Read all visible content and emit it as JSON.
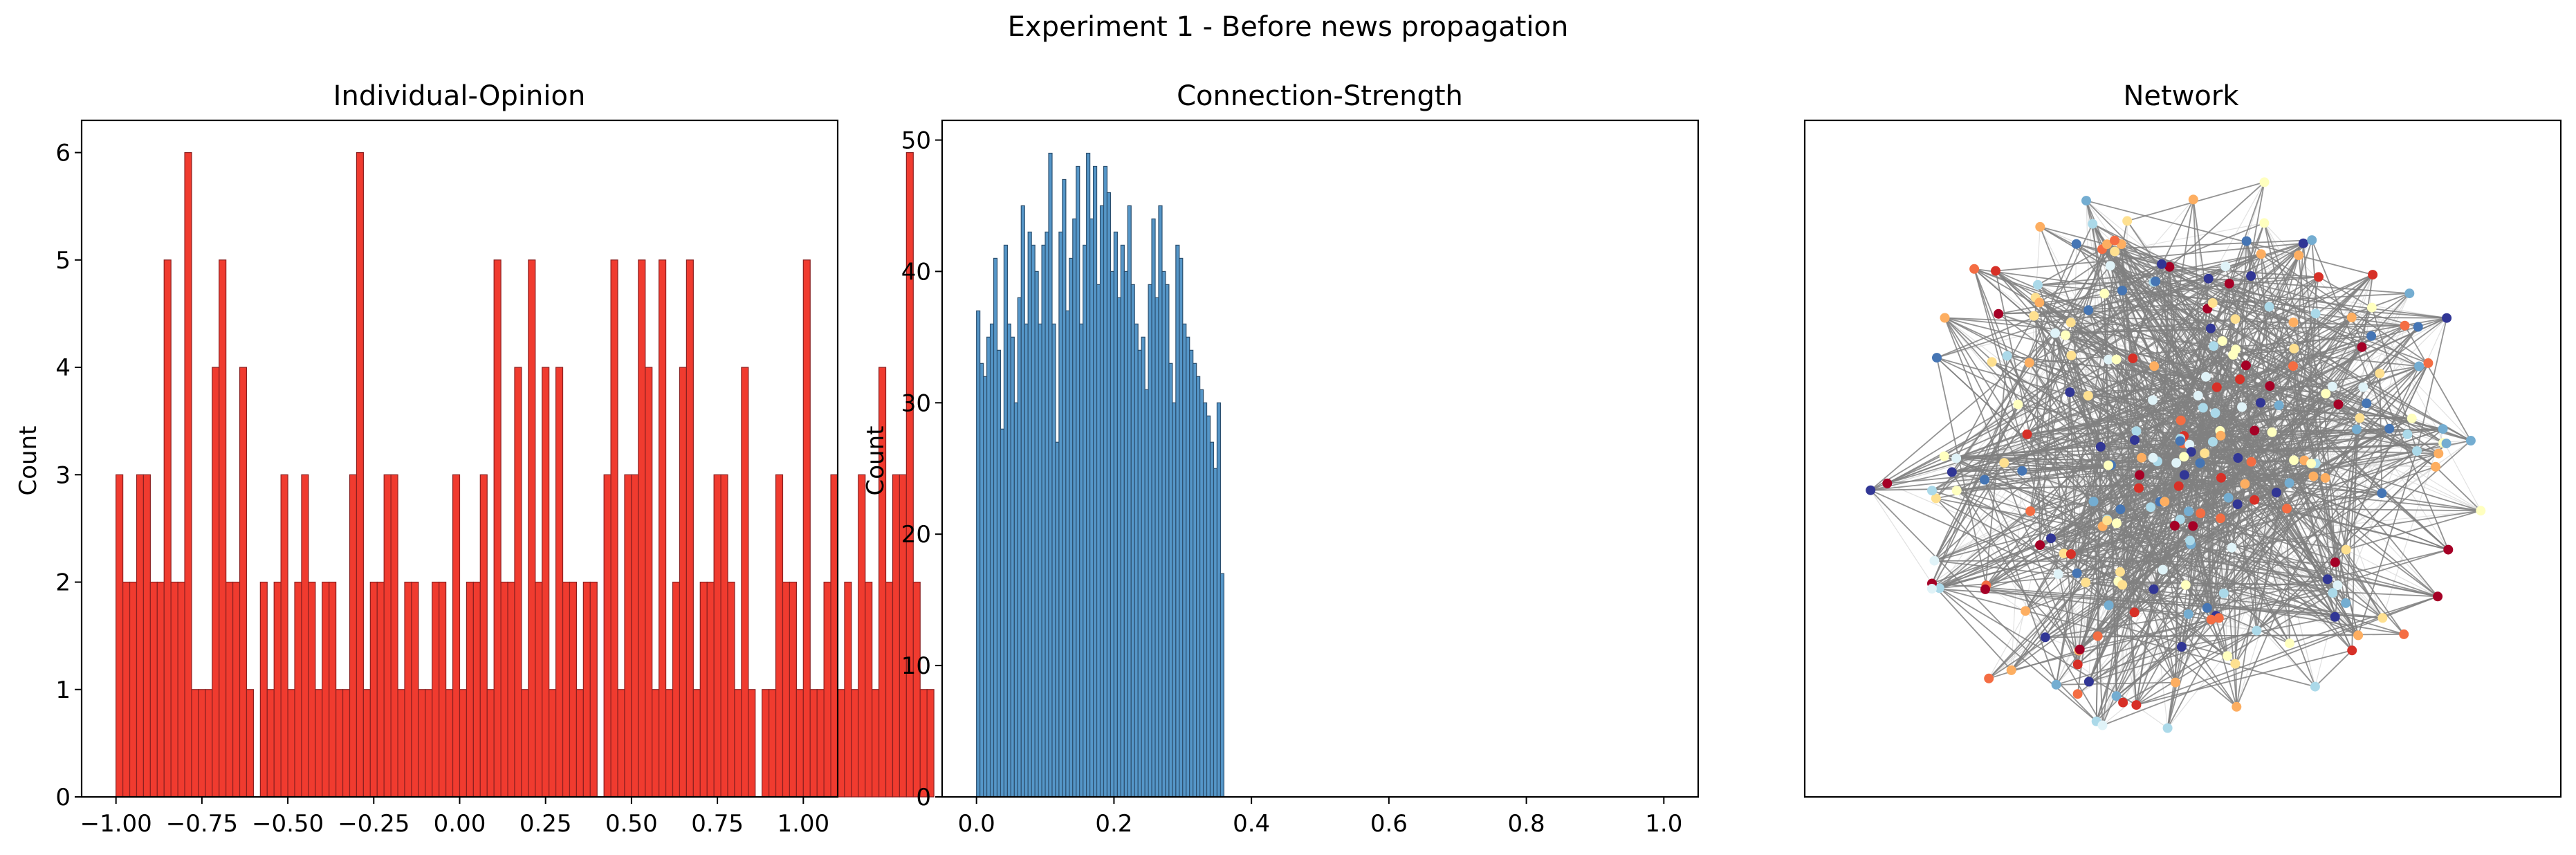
{
  "figure": {
    "suptitle": "Experiment 1 - Before news propagation"
  },
  "chart_data": [
    {
      "type": "bar",
      "title": "Individual-Opinion",
      "xlabel": "",
      "ylabel": "Count",
      "xlim": [
        -1.1,
        1.1
      ],
      "ylim": [
        0,
        6.3
      ],
      "bin_start": -1.0,
      "bin_width": 0.02,
      "values": [
        3,
        2,
        2,
        3,
        3,
        2,
        2,
        5,
        2,
        2,
        6,
        1,
        1,
        1,
        4,
        5,
        2,
        2,
        4,
        1,
        0,
        2,
        1,
        2,
        3,
        1,
        2,
        3,
        2,
        1,
        2,
        2,
        1,
        1,
        3,
        6,
        1,
        2,
        2,
        3,
        3,
        1,
        2,
        2,
        1,
        1,
        2,
        2,
        1,
        3,
        1,
        2,
        2,
        3,
        1,
        5,
        2,
        2,
        4,
        1,
        5,
        2,
        4,
        1,
        4,
        2,
        2,
        1,
        2,
        2,
        0,
        3,
        5,
        1,
        3,
        3,
        5,
        4,
        1,
        5,
        1,
        2,
        4,
        5,
        1,
        2,
        2,
        3,
        3,
        2,
        1,
        4,
        1,
        0,
        1,
        1,
        3,
        2,
        2,
        1,
        5,
        1,
        1,
        2,
        3,
        1,
        2,
        1,
        3,
        2,
        1,
        4,
        2,
        3,
        3,
        6,
        2,
        1,
        1
      ],
      "bar_color": "#f03b2f",
      "edge_color": "#8b2020",
      "xticks": [
        -1.0,
        -0.75,
        -0.5,
        -0.25,
        0.0,
        0.25,
        0.5,
        0.75,
        1.0
      ],
      "xtick_labels": [
        "−1.00",
        "−0.75",
        "−0.50",
        "−0.25",
        "0.00",
        "0.25",
        "0.50",
        "0.75",
        "1.00"
      ],
      "yticks": [
        0,
        1,
        2,
        3,
        4,
        5,
        6
      ],
      "ytick_labels": [
        "0",
        "1",
        "2",
        "3",
        "4",
        "5",
        "6"
      ]
    },
    {
      "type": "bar",
      "title": "Connection-Strength",
      "xlabel": "",
      "ylabel": "Count",
      "xlim": [
        -0.05,
        1.05
      ],
      "ylim": [
        0,
        51.5
      ],
      "bin_start": 0.0,
      "bin_width": 0.005,
      "values": [
        37,
        33,
        32,
        35,
        36,
        41,
        34,
        28,
        42,
        36,
        35,
        30,
        38,
        45,
        36,
        43,
        42,
        40,
        36,
        42,
        43,
        49,
        36,
        27,
        43,
        47,
        37,
        41,
        44,
        48,
        36,
        42,
        49,
        44,
        48,
        39,
        45,
        48,
        46,
        40,
        43,
        38,
        42,
        40,
        45,
        39,
        36,
        34,
        35,
        31,
        39,
        44,
        38,
        45,
        40,
        39,
        33,
        30,
        42,
        41,
        36,
        35,
        34,
        33,
        32,
        31,
        30,
        29,
        27,
        25,
        30,
        17
      ],
      "bar_color": "#5596c8",
      "edge_color": "#2c4f6e",
      "xticks": [
        0.0,
        0.2,
        0.4,
        0.6,
        0.8,
        1.0
      ],
      "xtick_labels": [
        "0.0",
        "0.2",
        "0.4",
        "0.6",
        "0.8",
        "1.0"
      ],
      "yticks": [
        0,
        10,
        20,
        30,
        40,
        50
      ],
      "ytick_labels": [
        "0",
        "10",
        "20",
        "30",
        "40",
        "50"
      ]
    },
    {
      "type": "network",
      "title": "Network",
      "node_count": 250,
      "edge_color": "#808080",
      "node_colors": [
        "#a50026",
        "#d73027",
        "#f46d43",
        "#fdae61",
        "#fee090",
        "#ffffbf",
        "#e0f3f8",
        "#abd9e9",
        "#74add1",
        "#4575b4",
        "#313695"
      ]
    }
  ]
}
